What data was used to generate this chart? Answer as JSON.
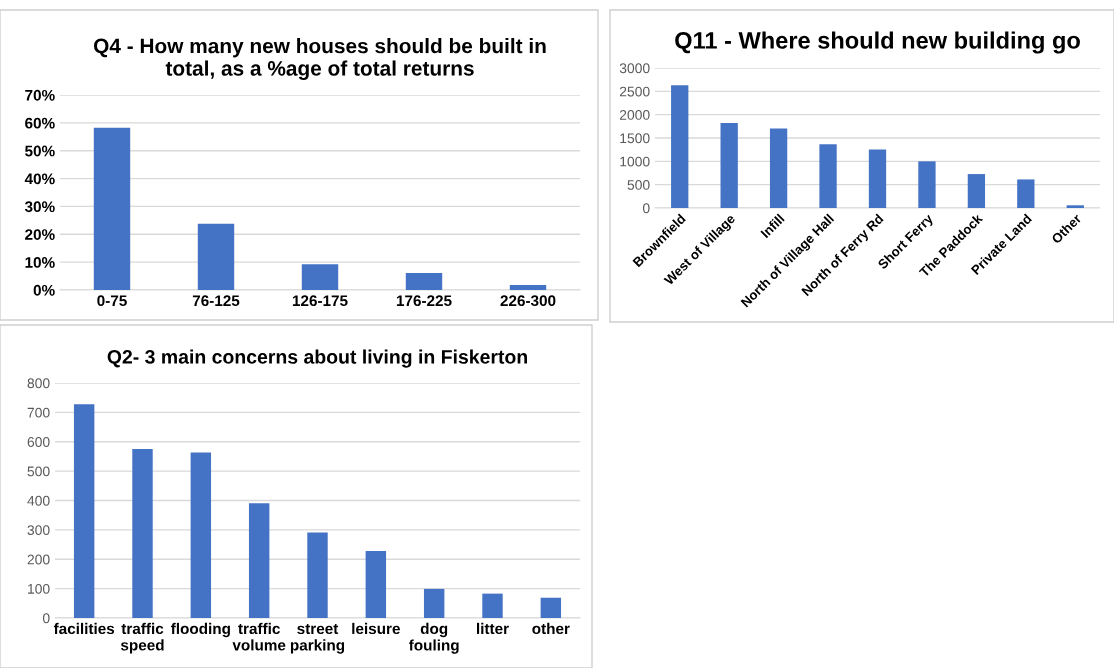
{
  "chart_data": [
    {
      "type": "bar",
      "title": "Q4 - How many new houses should be built in\ntotal, as a %age of total returns",
      "categories": [
        "0-75",
        "76-125",
        "126-175",
        "176-225",
        "226-300"
      ],
      "values": [
        58.2,
        23.8,
        9.2,
        6.1,
        1.8
      ],
      "color": "#4472c4",
      "ylim": [
        0,
        70
      ],
      "yticks": [
        {
          "value": 0,
          "label": "0%"
        },
        {
          "value": 10,
          "label": "10%"
        },
        {
          "value": 20,
          "label": "20%"
        },
        {
          "value": 30,
          "label": "30%"
        },
        {
          "value": 40,
          "label": "40%"
        },
        {
          "value": 50,
          "label": "50%"
        },
        {
          "value": 60,
          "label": "60%"
        },
        {
          "value": 70,
          "label": "70%"
        }
      ],
      "grid": "y"
    },
    {
      "type": "bar",
      "title": "Q11 - Where should new building go",
      "categories": [
        "Brownfield",
        "West of Village",
        "Infill",
        "North of Village Hall",
        "North of Ferry Rd",
        "Short Ferry",
        "The Paddock",
        "Private Land",
        "Other"
      ],
      "values": [
        2630,
        1820,
        1705,
        1367,
        1252,
        1000,
        727,
        612,
        58
      ],
      "color": "#4472c4",
      "ylim": [
        0,
        3000
      ],
      "yticks": [
        0,
        500,
        1000,
        1500,
        2000,
        2500,
        3000
      ],
      "grid": "y"
    },
    {
      "type": "bar",
      "title": "Q2- 3 main concerns about living in Fiskerton",
      "categories": [
        "facilities",
        "traffic\nspeed",
        "flooding",
        "traffic\nvolume",
        "street\nparking",
        "leisure",
        "dog\nfouling",
        "litter",
        "other"
      ],
      "values": [
        728,
        575,
        563,
        391,
        291,
        228,
        99,
        83,
        69
      ],
      "color": "#4472c4",
      "ylim": [
        0,
        800
      ],
      "yticks": [
        0,
        100,
        200,
        300,
        400,
        500,
        600,
        700,
        800
      ],
      "grid": "y"
    }
  ]
}
